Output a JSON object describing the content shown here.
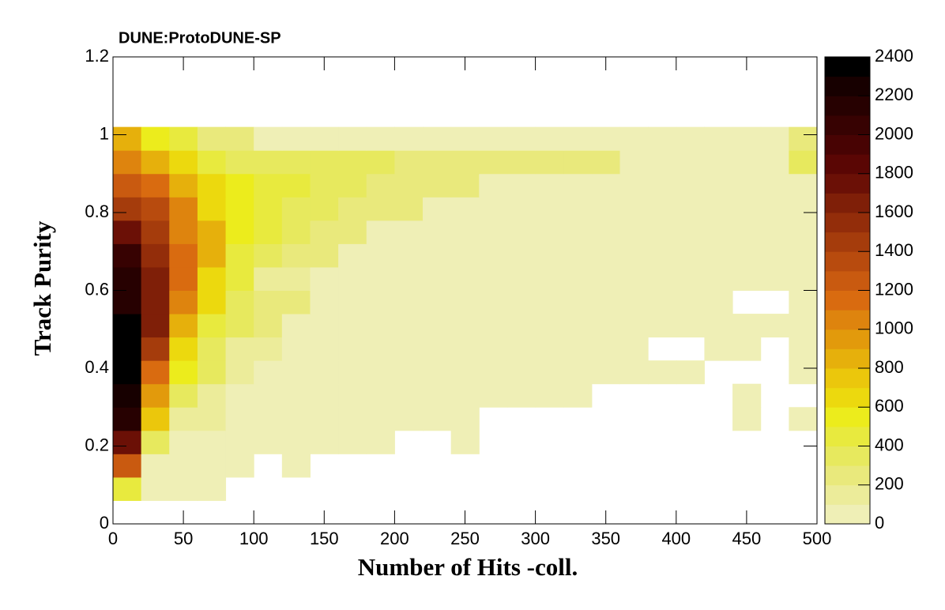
{
  "chart_data": {
    "type": "heatmap",
    "title": "DUNE:ProtoDUNE-SP",
    "x_label": "Number of Hits -coll.",
    "y_label": "Track Purity",
    "xlim": [
      0,
      500
    ],
    "ylim": [
      0,
      1.2
    ],
    "xticks": [
      0,
      50,
      100,
      150,
      200,
      250,
      300,
      350,
      400,
      450,
      500
    ],
    "yticks": [
      0,
      0.2,
      0.4,
      0.6,
      0.8,
      1,
      1.2
    ],
    "xbins": [
      0,
      20,
      40,
      60,
      80,
      100,
      120,
      140,
      160,
      180,
      200,
      220,
      240,
      260,
      280,
      300,
      320,
      340,
      360,
      380,
      400,
      420,
      440,
      460,
      480,
      500
    ],
    "ybins": [
      0,
      0.06,
      0.12,
      0.18,
      0.24,
      0.3,
      0.36,
      0.42,
      0.48,
      0.54,
      0.6,
      0.66,
      0.72,
      0.78,
      0.84,
      0.9,
      0.96,
      1.02,
      1.08,
      1.14,
      1.2
    ],
    "zlim": [
      0,
      2400
    ],
    "zticks": [
      0,
      200,
      400,
      600,
      800,
      1000,
      1200,
      1400,
      1600,
      1800,
      2000,
      2200,
      2400
    ],
    "palette": [
      "#efefb6",
      "#ecec9a",
      "#e9e97c",
      "#e7e95e",
      "#e8ea3e",
      "#ecec1c",
      "#ecd90e",
      "#ebc70c",
      "#e6b00c",
      "#e29a0c",
      "#de840e",
      "#d96b10",
      "#c95a10",
      "#b84b0e",
      "#a53c0c",
      "#932d0a",
      "#7f1f08",
      "#6b1006",
      "#5a0604",
      "#480303",
      "#370202",
      "#270101",
      "#170000",
      "#000000"
    ],
    "z": [
      [
        null,
        null,
        null,
        null,
        null,
        null,
        null,
        null,
        null,
        null,
        null,
        null,
        null,
        null,
        null,
        null,
        null,
        null,
        null,
        null,
        null,
        null,
        null,
        null,
        null
      ],
      [
        450,
        50,
        50,
        50,
        null,
        null,
        null,
        null,
        null,
        null,
        null,
        null,
        null,
        null,
        null,
        null,
        null,
        null,
        null,
        null,
        null,
        null,
        null,
        null,
        null
      ],
      [
        1250,
        50,
        50,
        50,
        50,
        null,
        50,
        null,
        null,
        null,
        null,
        null,
        null,
        null,
        null,
        null,
        null,
        null,
        null,
        null,
        null,
        null,
        null,
        null,
        null
      ],
      [
        1750,
        350,
        50,
        50,
        50,
        50,
        50,
        50,
        50,
        50,
        null,
        null,
        50,
        null,
        null,
        null,
        null,
        null,
        null,
        null,
        null,
        null,
        null,
        null,
        null
      ],
      [
        2150,
        750,
        150,
        150,
        50,
        50,
        50,
        50,
        50,
        50,
        50,
        50,
        50,
        null,
        null,
        null,
        null,
        null,
        null,
        null,
        null,
        null,
        50,
        null,
        50
      ],
      [
        2250,
        950,
        350,
        150,
        50,
        50,
        50,
        50,
        50,
        50,
        50,
        50,
        50,
        50,
        50,
        50,
        50,
        null,
        null,
        null,
        null,
        null,
        50,
        null,
        null
      ],
      [
        2350,
        1150,
        550,
        350,
        150,
        50,
        50,
        50,
        50,
        50,
        50,
        50,
        50,
        50,
        50,
        50,
        50,
        50,
        50,
        50,
        50,
        null,
        null,
        null,
        50
      ],
      [
        2350,
        1450,
        650,
        350,
        150,
        150,
        50,
        50,
        50,
        50,
        50,
        50,
        50,
        50,
        50,
        50,
        50,
        50,
        50,
        null,
        null,
        50,
        50,
        null,
        50
      ],
      [
        2350,
        1650,
        850,
        450,
        350,
        250,
        50,
        50,
        50,
        50,
        50,
        50,
        50,
        50,
        50,
        50,
        50,
        50,
        50,
        50,
        50,
        50,
        50,
        50,
        50
      ],
      [
        2150,
        1650,
        1050,
        650,
        350,
        250,
        250,
        50,
        50,
        50,
        50,
        50,
        50,
        50,
        50,
        50,
        50,
        50,
        50,
        50,
        50,
        50,
        null,
        null,
        50
      ],
      [
        2150,
        1650,
        1150,
        650,
        450,
        150,
        150,
        50,
        50,
        50,
        50,
        50,
        50,
        50,
        50,
        50,
        50,
        50,
        50,
        50,
        50,
        50,
        50,
        50,
        50
      ],
      [
        2050,
        1550,
        1150,
        850,
        450,
        350,
        250,
        250,
        50,
        50,
        50,
        50,
        50,
        50,
        50,
        50,
        50,
        50,
        50,
        50,
        50,
        50,
        50,
        50,
        50
      ],
      [
        1750,
        1450,
        1050,
        850,
        550,
        450,
        350,
        250,
        250,
        50,
        50,
        50,
        50,
        50,
        50,
        50,
        50,
        50,
        50,
        50,
        50,
        50,
        50,
        50,
        50
      ],
      [
        1450,
        1350,
        1050,
        650,
        550,
        450,
        350,
        350,
        250,
        250,
        250,
        50,
        50,
        50,
        50,
        50,
        50,
        50,
        50,
        50,
        50,
        50,
        50,
        50,
        50
      ],
      [
        1250,
        1150,
        850,
        650,
        550,
        450,
        450,
        350,
        350,
        250,
        250,
        250,
        250,
        50,
        50,
        50,
        50,
        50,
        50,
        50,
        50,
        50,
        50,
        50,
        50
      ],
      [
        1050,
        850,
        650,
        450,
        350,
        350,
        350,
        350,
        350,
        350,
        250,
        250,
        250,
        250,
        250,
        250,
        250,
        250,
        50,
        50,
        50,
        50,
        50,
        50,
        350
      ],
      [
        850,
        550,
        450,
        250,
        250,
        50,
        50,
        50,
        50,
        50,
        50,
        50,
        50,
        50,
        50,
        50,
        50,
        50,
        50,
        50,
        50,
        50,
        50,
        50,
        250
      ],
      [
        null,
        null,
        null,
        null,
        null,
        null,
        null,
        null,
        null,
        null,
        null,
        null,
        null,
        null,
        null,
        null,
        null,
        null,
        null,
        null,
        null,
        null,
        null,
        null,
        null
      ],
      [
        null,
        null,
        null,
        null,
        null,
        null,
        null,
        null,
        null,
        null,
        null,
        null,
        null,
        null,
        null,
        null,
        null,
        null,
        null,
        null,
        null,
        null,
        null,
        null,
        null
      ],
      [
        null,
        null,
        null,
        null,
        null,
        null,
        null,
        null,
        null,
        null,
        null,
        null,
        null,
        null,
        null,
        null,
        null,
        null,
        null,
        null,
        null,
        null,
        null,
        null,
        null
      ]
    ]
  }
}
